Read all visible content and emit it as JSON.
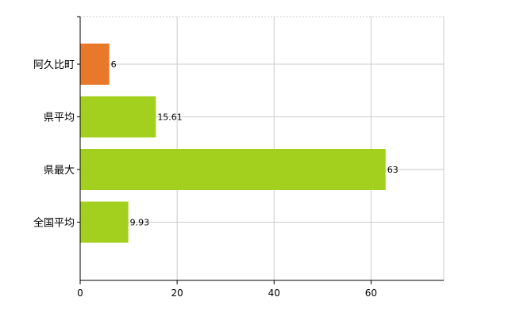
{
  "colors": {
    "highlight": "#e8792a",
    "default": "#a3cf1e",
    "grid": "#cccccc",
    "axis": "#000000"
  },
  "chart_data": {
    "type": "bar",
    "orientation": "horizontal",
    "categories": [
      "阿久比町",
      "県平均",
      "県最大",
      "全国平均"
    ],
    "values": [
      6,
      15.61,
      63,
      9.93
    ],
    "value_labels": [
      "6",
      "15.61",
      "63",
      "9.93"
    ],
    "highlight_index": 0,
    "xlim": [
      0,
      75
    ],
    "xticks": [
      0,
      20,
      40,
      60
    ],
    "grid": true,
    "legend": "none"
  }
}
